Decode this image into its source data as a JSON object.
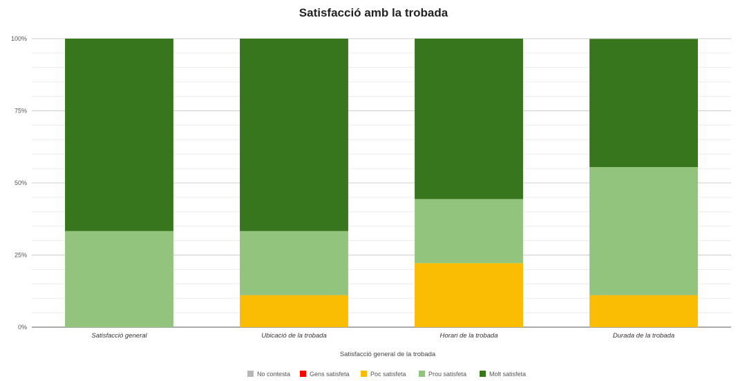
{
  "chart_data": {
    "type": "bar",
    "stacked": "percent",
    "title": "Satisfacció amb la trobada",
    "xlabel": "Satisfacció general de la trobada",
    "ylabel": "",
    "ylim": [
      0,
      100
    ],
    "yticks": [
      "0%",
      "25%",
      "50%",
      "75%",
      "100%"
    ],
    "grid": true,
    "legend_position": "bottom",
    "categories": [
      "Satisfacció general",
      "Ubicació de la trobada",
      "Horari de la trobada",
      "Durada de la trobada"
    ],
    "series": [
      {
        "name": "No contesta",
        "color": "#b7b7b7",
        "values": [
          0,
          0,
          0,
          0
        ]
      },
      {
        "name": "Gens satisfeta",
        "color": "#ff0000",
        "values": [
          0,
          0,
          0,
          0
        ]
      },
      {
        "name": "Poc satisfeta",
        "color": "#fbbc04",
        "values": [
          0,
          11.1,
          22.2,
          11.1
        ]
      },
      {
        "name": "Prou satisfeta",
        "color": "#93c47d",
        "values": [
          33.3,
          22.2,
          22.2,
          44.4
        ]
      },
      {
        "name": "Molt satisfeta",
        "color": "#38761d",
        "values": [
          66.7,
          66.7,
          55.6,
          44.4
        ]
      }
    ]
  }
}
